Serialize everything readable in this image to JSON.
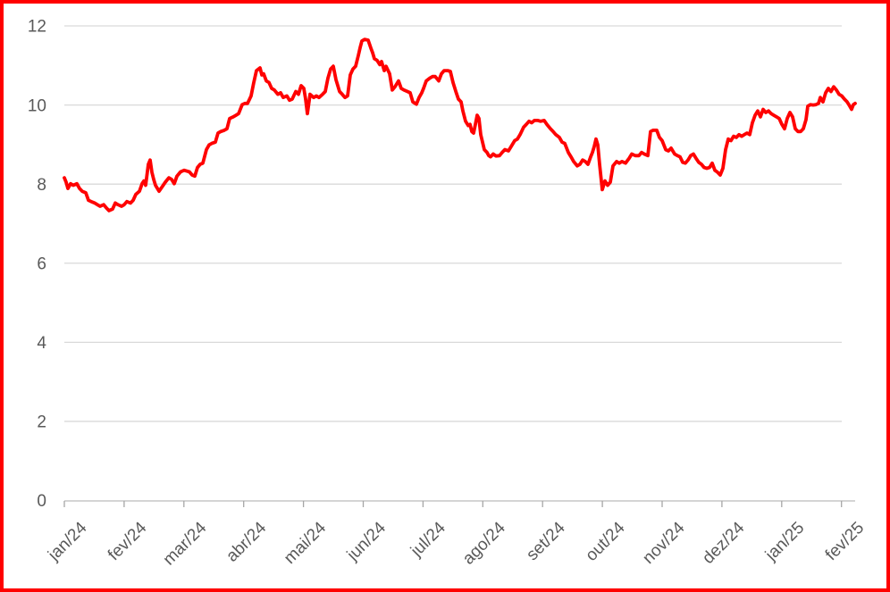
{
  "frame": {
    "border_color": "#FF0000",
    "background": "#FFFFFF"
  },
  "axis_style": {
    "label_color": "#595959",
    "gridline_color": "#D9D9D9",
    "axis_line_color": "#C6C6C6",
    "tick_color": "#A6A6A6"
  },
  "chart_data": {
    "type": "line",
    "title": "",
    "legend": false,
    "grid": true,
    "x_axis": {
      "unit": "month",
      "labels": [
        "jan/24",
        "fev/24",
        "mar/24",
        "abr/24",
        "mai/24",
        "jun/24",
        "jul/24",
        "ago/24",
        "set/24",
        "out/24",
        "nov/24",
        "dez/24",
        "jan/25",
        "fev/25"
      ]
    },
    "y_axis": {
      "ticks": [
        0,
        2,
        4,
        6,
        8,
        10,
        12
      ],
      "tick_labels": [
        "0",
        "2",
        "4",
        "6",
        "8",
        "10",
        "12"
      ],
      "min": 0,
      "max": 12
    },
    "series": [
      {
        "name": "serie",
        "color": "#FF0000",
        "points": [
          [
            0.0,
            8.16
          ],
          [
            0.03,
            8.05
          ],
          [
            0.06,
            7.89
          ],
          [
            0.105,
            8.01
          ],
          [
            0.149,
            7.97
          ],
          [
            0.209,
            8.01
          ],
          [
            0.254,
            7.89
          ],
          [
            0.299,
            7.82
          ],
          [
            0.359,
            7.78
          ],
          [
            0.404,
            7.59
          ],
          [
            0.448,
            7.56
          ],
          [
            0.508,
            7.52
          ],
          [
            0.553,
            7.48
          ],
          [
            0.598,
            7.44
          ],
          [
            0.658,
            7.48
          ],
          [
            0.703,
            7.4
          ],
          [
            0.747,
            7.33
          ],
          [
            0.807,
            7.37
          ],
          [
            0.852,
            7.52
          ],
          [
            0.897,
            7.48
          ],
          [
            0.957,
            7.44
          ],
          [
            1.001,
            7.48
          ],
          [
            1.046,
            7.56
          ],
          [
            1.106,
            7.52
          ],
          [
            1.151,
            7.59
          ],
          [
            1.196,
            7.74
          ],
          [
            1.256,
            7.82
          ],
          [
            1.3,
            8.01
          ],
          [
            1.33,
            8.08
          ],
          [
            1.36,
            7.97
          ],
          [
            1.405,
            8.5
          ],
          [
            1.435,
            8.61
          ],
          [
            1.465,
            8.3
          ],
          [
            1.495,
            8.12
          ],
          [
            1.525,
            7.97
          ],
          [
            1.584,
            7.82
          ],
          [
            1.644,
            7.95
          ],
          [
            1.689,
            8.05
          ],
          [
            1.749,
            8.16
          ],
          [
            1.794,
            8.12
          ],
          [
            1.839,
            8.01
          ],
          [
            1.883,
            8.2
          ],
          [
            1.943,
            8.31
          ],
          [
            2.003,
            8.35
          ],
          [
            2.048,
            8.33
          ],
          [
            2.093,
            8.31
          ],
          [
            2.138,
            8.23
          ],
          [
            2.182,
            8.2
          ],
          [
            2.227,
            8.42
          ],
          [
            2.272,
            8.5
          ],
          [
            2.317,
            8.53
          ],
          [
            2.377,
            8.87
          ],
          [
            2.422,
            8.99
          ],
          [
            2.466,
            9.03
          ],
          [
            2.526,
            9.06
          ],
          [
            2.571,
            9.29
          ],
          [
            2.616,
            9.33
          ],
          [
            2.676,
            9.36
          ],
          [
            2.721,
            9.4
          ],
          [
            2.765,
            9.66
          ],
          [
            2.825,
            9.7
          ],
          [
            2.87,
            9.74
          ],
          [
            2.915,
            9.78
          ],
          [
            2.975,
            10.01
          ],
          [
            3.019,
            10.04
          ],
          [
            3.064,
            10.04
          ],
          [
            3.124,
            10.23
          ],
          [
            3.169,
            10.57
          ],
          [
            3.214,
            10.87
          ],
          [
            3.273,
            10.94
          ],
          [
            3.303,
            10.76
          ],
          [
            3.333,
            10.79
          ],
          [
            3.378,
            10.61
          ],
          [
            3.423,
            10.57
          ],
          [
            3.468,
            10.42
          ],
          [
            3.513,
            10.38
          ],
          [
            3.572,
            10.27
          ],
          [
            3.617,
            10.31
          ],
          [
            3.662,
            10.19
          ],
          [
            3.722,
            10.23
          ],
          [
            3.767,
            10.12
          ],
          [
            3.812,
            10.15
          ],
          [
            3.871,
            10.34
          ],
          [
            3.916,
            10.27
          ],
          [
            3.961,
            10.49
          ],
          [
            4.006,
            10.42
          ],
          [
            4.036,
            10.15
          ],
          [
            4.066,
            9.78
          ],
          [
            4.111,
            10.27
          ],
          [
            4.17,
            10.19
          ],
          [
            4.215,
            10.23
          ],
          [
            4.26,
            10.19
          ],
          [
            4.32,
            10.27
          ],
          [
            4.365,
            10.34
          ],
          [
            4.41,
            10.68
          ],
          [
            4.454,
            10.91
          ],
          [
            4.499,
            10.98
          ],
          [
            4.544,
            10.64
          ],
          [
            4.604,
            10.34
          ],
          [
            4.649,
            10.27
          ],
          [
            4.694,
            10.19
          ],
          [
            4.738,
            10.23
          ],
          [
            4.783,
            10.76
          ],
          [
            4.828,
            10.91
          ],
          [
            4.873,
            10.98
          ],
          [
            4.918,
            11.25
          ],
          [
            4.948,
            11.45
          ],
          [
            4.978,
            11.62
          ],
          [
            5.022,
            11.66
          ],
          [
            5.082,
            11.64
          ],
          [
            5.127,
            11.44
          ],
          [
            5.157,
            11.32
          ],
          [
            5.187,
            11.17
          ],
          [
            5.232,
            11.13
          ],
          [
            5.277,
            11.02
          ],
          [
            5.307,
            11.1
          ],
          [
            5.352,
            10.87
          ],
          [
            5.381,
            10.98
          ],
          [
            5.441,
            10.79
          ],
          [
            5.486,
            10.38
          ],
          [
            5.531,
            10.46
          ],
          [
            5.591,
            10.61
          ],
          [
            5.635,
            10.42
          ],
          [
            5.68,
            10.38
          ],
          [
            5.74,
            10.34
          ],
          [
            5.785,
            10.31
          ],
          [
            5.83,
            10.08
          ],
          [
            5.89,
            10.02
          ],
          [
            5.934,
            10.19
          ],
          [
            5.979,
            10.31
          ],
          [
            6.009,
            10.42
          ],
          [
            6.054,
            10.61
          ],
          [
            6.114,
            10.68
          ],
          [
            6.158,
            10.72
          ],
          [
            6.203,
            10.72
          ],
          [
            6.263,
            10.61
          ],
          [
            6.308,
            10.79
          ],
          [
            6.353,
            10.87
          ],
          [
            6.413,
            10.87
          ],
          [
            6.457,
            10.85
          ],
          [
            6.502,
            10.57
          ],
          [
            6.547,
            10.35
          ],
          [
            6.592,
            10.15
          ],
          [
            6.637,
            10.08
          ],
          [
            6.667,
            9.85
          ],
          [
            6.712,
            9.59
          ],
          [
            6.756,
            9.48
          ],
          [
            6.786,
            9.51
          ],
          [
            6.816,
            9.33
          ],
          [
            6.846,
            9.29
          ],
          [
            6.876,
            9.51
          ],
          [
            6.906,
            9.74
          ],
          [
            6.936,
            9.66
          ],
          [
            6.966,
            9.25
          ],
          [
            6.996,
            9.06
          ],
          [
            7.025,
            8.87
          ],
          [
            7.07,
            8.8
          ],
          [
            7.1,
            8.72
          ],
          [
            7.13,
            8.69
          ],
          [
            7.175,
            8.76
          ],
          [
            7.22,
            8.71
          ],
          [
            7.28,
            8.72
          ],
          [
            7.325,
            8.8
          ],
          [
            7.369,
            8.87
          ],
          [
            7.429,
            8.84
          ],
          [
            7.474,
            8.95
          ],
          [
            7.534,
            9.1
          ],
          [
            7.579,
            9.14
          ],
          [
            7.623,
            9.25
          ],
          [
            7.683,
            9.44
          ],
          [
            7.728,
            9.51
          ],
          [
            7.773,
            9.59
          ],
          [
            7.818,
            9.55
          ],
          [
            7.863,
            9.61
          ],
          [
            7.922,
            9.61
          ],
          [
            7.967,
            9.59
          ],
          [
            8.027,
            9.61
          ],
          [
            8.072,
            9.51
          ],
          [
            8.132,
            9.4
          ],
          [
            8.176,
            9.33
          ],
          [
            8.221,
            9.25
          ],
          [
            8.281,
            9.18
          ],
          [
            8.326,
            9.06
          ],
          [
            8.371,
            9.03
          ],
          [
            8.43,
            8.8
          ],
          [
            8.475,
            8.69
          ],
          [
            8.52,
            8.57
          ],
          [
            8.58,
            8.46
          ],
          [
            8.625,
            8.5
          ],
          [
            8.67,
            8.61
          ],
          [
            8.714,
            8.57
          ],
          [
            8.759,
            8.5
          ],
          [
            8.804,
            8.69
          ],
          [
            8.834,
            8.8
          ],
          [
            8.864,
            8.95
          ],
          [
            8.894,
            9.14
          ],
          [
            8.924,
            8.99
          ],
          [
            8.954,
            8.5
          ],
          [
            8.999,
            7.86
          ],
          [
            9.043,
            8.08
          ],
          [
            9.088,
            7.97
          ],
          [
            9.133,
            8.05
          ],
          [
            9.178,
            8.46
          ],
          [
            9.238,
            8.57
          ],
          [
            9.283,
            8.53
          ],
          [
            9.327,
            8.57
          ],
          [
            9.387,
            8.53
          ],
          [
            9.447,
            8.65
          ],
          [
            9.492,
            8.76
          ],
          [
            9.552,
            8.72
          ],
          [
            9.611,
            8.72
          ],
          [
            9.656,
            8.8
          ],
          [
            9.701,
            8.76
          ],
          [
            9.761,
            8.72
          ],
          [
            9.806,
            9.33
          ],
          [
            9.851,
            9.36
          ],
          [
            9.91,
            9.36
          ],
          [
            9.955,
            9.18
          ],
          [
            10.0,
            9.1
          ],
          [
            10.06,
            8.87
          ],
          [
            10.105,
            8.84
          ],
          [
            10.149,
            8.91
          ],
          [
            10.209,
            8.76
          ],
          [
            10.254,
            8.72
          ],
          [
            10.299,
            8.69
          ],
          [
            10.344,
            8.55
          ],
          [
            10.389,
            8.53
          ],
          [
            10.433,
            8.61
          ],
          [
            10.478,
            8.72
          ],
          [
            10.523,
            8.76
          ],
          [
            10.568,
            8.65
          ],
          [
            10.613,
            8.55
          ],
          [
            10.658,
            8.5
          ],
          [
            10.702,
            8.42
          ],
          [
            10.747,
            8.4
          ],
          [
            10.792,
            8.42
          ],
          [
            10.837,
            8.53
          ],
          [
            10.882,
            8.35
          ],
          [
            10.927,
            8.3
          ],
          [
            10.971,
            8.23
          ],
          [
            11.016,
            8.4
          ],
          [
            11.061,
            8.87
          ],
          [
            11.106,
            9.14
          ],
          [
            11.151,
            9.1
          ],
          [
            11.196,
            9.21
          ],
          [
            11.241,
            9.18
          ],
          [
            11.285,
            9.25
          ],
          [
            11.33,
            9.21
          ],
          [
            11.375,
            9.25
          ],
          [
            11.42,
            9.29
          ],
          [
            11.465,
            9.25
          ],
          [
            11.51,
            9.55
          ],
          [
            11.554,
            9.74
          ],
          [
            11.599,
            9.85
          ],
          [
            11.644,
            9.7
          ],
          [
            11.689,
            9.89
          ],
          [
            11.734,
            9.81
          ],
          [
            11.779,
            9.85
          ],
          [
            11.824,
            9.78
          ],
          [
            11.868,
            9.74
          ],
          [
            11.913,
            9.7
          ],
          [
            11.958,
            9.66
          ],
          [
            12.003,
            9.51
          ],
          [
            12.048,
            9.4
          ],
          [
            12.093,
            9.66
          ],
          [
            12.137,
            9.81
          ],
          [
            12.182,
            9.7
          ],
          [
            12.227,
            9.4
          ],
          [
            12.272,
            9.33
          ],
          [
            12.317,
            9.33
          ],
          [
            12.362,
            9.4
          ],
          [
            12.407,
            9.63
          ],
          [
            12.437,
            9.97
          ],
          [
            12.481,
            10.01
          ],
          [
            12.526,
            10.0
          ],
          [
            12.571,
            10.01
          ],
          [
            12.616,
            10.04
          ],
          [
            12.646,
            10.19
          ],
          [
            12.691,
            10.08
          ],
          [
            12.736,
            10.31
          ],
          [
            12.78,
            10.42
          ],
          [
            12.825,
            10.34
          ],
          [
            12.87,
            10.46
          ],
          [
            12.915,
            10.38
          ],
          [
            12.96,
            10.27
          ],
          [
            13.005,
            10.23
          ],
          [
            13.049,
            10.15
          ],
          [
            13.094,
            10.08
          ],
          [
            13.139,
            9.97
          ],
          [
            13.169,
            9.89
          ],
          [
            13.199,
            10.01
          ],
          [
            13.229,
            10.04
          ]
        ]
      }
    ]
  }
}
